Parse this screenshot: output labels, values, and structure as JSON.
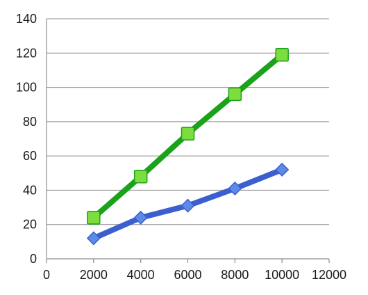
{
  "chart_data": {
    "type": "line",
    "title": "",
    "xlabel": "",
    "ylabel": "",
    "xlim": [
      0,
      12000
    ],
    "ylim": [
      0,
      140
    ],
    "x_ticks": [
      0,
      2000,
      4000,
      6000,
      8000,
      10000,
      12000
    ],
    "y_ticks": [
      0,
      20,
      40,
      60,
      80,
      100,
      120,
      140
    ],
    "grid": "horizontal",
    "legend": "none",
    "series": [
      {
        "name": "green-series",
        "color": "#1aa31a",
        "marker_fill": "#7ddc3e",
        "marker": "square",
        "x": [
          2000,
          4000,
          6000,
          8000,
          10000
        ],
        "values": [
          24,
          48,
          73,
          96,
          119
        ]
      },
      {
        "name": "blue-series",
        "color": "#3b5fcf",
        "marker_fill": "#5b8ae8",
        "marker": "diamond",
        "x": [
          2000,
          4000,
          6000,
          8000,
          10000
        ],
        "values": [
          12,
          24,
          31,
          41,
          52
        ]
      }
    ]
  }
}
